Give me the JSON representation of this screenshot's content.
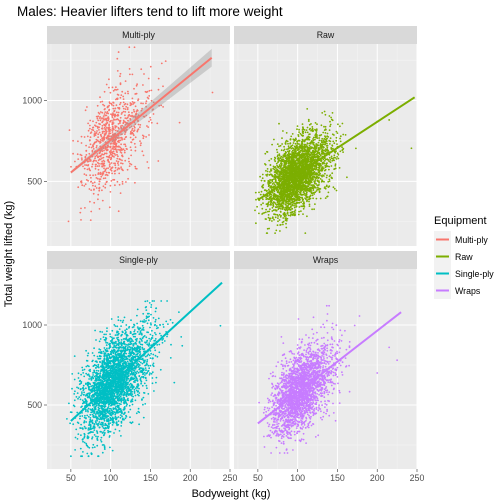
{
  "chart_data": {
    "type": "scatter",
    "title": "Males: Heavier lifters tend to lift more weight",
    "xlabel": "Bodyweight (kg)",
    "ylabel": "Total weight lifted (kg)",
    "xlim": [
      20,
      250
    ],
    "ylim": [
      100,
      1350
    ],
    "x_ticks": [
      50,
      100,
      150,
      200,
      250
    ],
    "y_ticks": [
      500,
      1000
    ],
    "facet_layout": "2x2",
    "grid": true,
    "legend": {
      "title": "Equipment",
      "position": "right",
      "entries": [
        "Multi-ply",
        "Raw",
        "Single-ply",
        "Wraps"
      ]
    },
    "panels": [
      {
        "name": "Multi-ply",
        "color": "#F8766D",
        "n_points": 900,
        "x_range": [
          45,
          230
        ],
        "y_range": [
          200,
          1330
        ],
        "x_center": 98,
        "x_spread": 22,
        "y_center": 760,
        "y_spread": 170,
        "fit_line": {
          "x0": 50,
          "y0": 555,
          "x1": 227,
          "y1": 1265
        },
        "confidence_band": true,
        "outliers": [
          [
            228,
            1050
          ],
          [
            130,
            1330
          ],
          [
            110,
            1300
          ],
          [
            75,
            260
          ]
        ]
      },
      {
        "name": "Raw",
        "color": "#7CAE00",
        "n_points": 3200,
        "x_range": [
          45,
          250
        ],
        "y_range": [
          180,
          1100
        ],
        "x_center": 95,
        "x_spread": 20,
        "y_center": 560,
        "y_spread": 120,
        "fit_line": {
          "x0": 50,
          "y0": 385,
          "x1": 247,
          "y1": 1020
        },
        "confidence_band": false,
        "outliers": [
          [
            243,
            705
          ],
          [
            200,
            870
          ],
          [
            215,
            880
          ]
        ]
      },
      {
        "name": "Single-ply",
        "color": "#00BFC4",
        "n_points": 3000,
        "x_range": [
          45,
          245
        ],
        "y_range": [
          180,
          1150
        ],
        "x_center": 100,
        "x_spread": 22,
        "y_center": 640,
        "y_spread": 160,
        "fit_line": {
          "x0": 50,
          "y0": 400,
          "x1": 240,
          "y1": 1265
        },
        "confidence_band": false,
        "outliers": [
          [
            238,
            995
          ],
          [
            190,
            870
          ],
          [
            180,
            640
          ]
        ]
      },
      {
        "name": "Wraps",
        "color": "#C77CFF",
        "n_points": 2400,
        "x_range": [
          45,
          235
        ],
        "y_range": [
          200,
          1120
        ],
        "x_center": 100,
        "x_spread": 20,
        "y_center": 600,
        "y_spread": 140,
        "fit_line": {
          "x0": 50,
          "y0": 385,
          "x1": 230,
          "y1": 1080
        },
        "confidence_band": false,
        "outliers": [
          [
            225,
            780
          ],
          [
            215,
            860
          ],
          [
            200,
            700
          ]
        ]
      }
    ]
  }
}
